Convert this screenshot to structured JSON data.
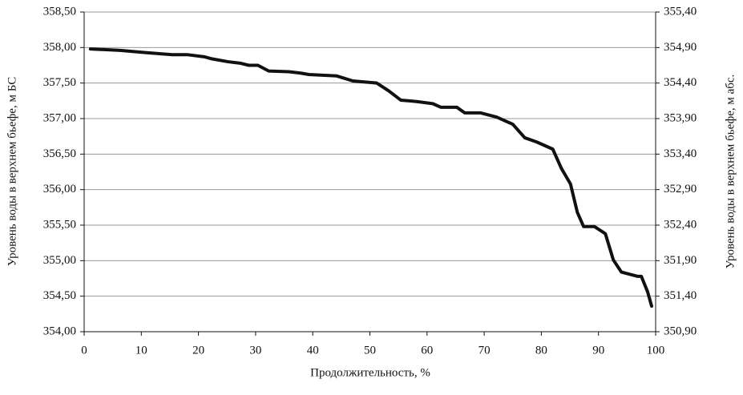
{
  "chart_data": {
    "type": "line",
    "xlabel": "Продолжительность, %",
    "ylabel": "Уровень воды в верхнем бьефе, м БС",
    "y2label": "Уровень воды в верхнем бьефе, м абс.",
    "xlim": [
      0,
      100
    ],
    "xticks": [
      0,
      10,
      20,
      30,
      40,
      50,
      60,
      70,
      80,
      90,
      100
    ],
    "ylim": [
      354.0,
      358.5
    ],
    "yticks": [
      {
        "value": 354.0,
        "label": "354,00"
      },
      {
        "value": 354.5,
        "label": "354,50"
      },
      {
        "value": 355.0,
        "label": "355,00"
      },
      {
        "value": 355.5,
        "label": "355,50"
      },
      {
        "value": 356.0,
        "label": "356,00"
      },
      {
        "value": 356.5,
        "label": "356,50"
      },
      {
        "value": 357.0,
        "label": "357,00"
      },
      {
        "value": 357.5,
        "label": "357,50"
      },
      {
        "value": 358.0,
        "label": "358,00"
      },
      {
        "value": 358.5,
        "label": "358,50"
      }
    ],
    "y2lim": [
      350.9,
      355.4
    ],
    "y2ticks": [
      {
        "value": 350.9,
        "label": "350,90"
      },
      {
        "value": 351.4,
        "label": "351,40"
      },
      {
        "value": 351.9,
        "label": "351,90"
      },
      {
        "value": 352.4,
        "label": "352,40"
      },
      {
        "value": 352.9,
        "label": "352,90"
      },
      {
        "value": 353.4,
        "label": "353,40"
      },
      {
        "value": 353.9,
        "label": "353,90"
      },
      {
        "value": 354.4,
        "label": "354,40"
      },
      {
        "value": 354.9,
        "label": "354,90"
      },
      {
        "value": 355.4,
        "label": "355,40"
      }
    ],
    "grid": true,
    "series": [
      {
        "color": "#111111",
        "x": [
          1.1,
          6.3,
          10.5,
          15.4,
          18,
          21,
          22.4,
          25.2,
          27.3,
          28.8,
          30.4,
          32.3,
          35.8,
          37.9,
          39.3,
          44.2,
          47,
          51.2,
          53.3,
          55.4,
          58.2,
          61,
          62.4,
          65.2,
          66.6,
          69.4,
          72.2,
          75,
          77.1,
          79.2,
          82,
          83.5,
          85.1,
          86.3,
          87.4,
          89.3,
          91.2,
          92.6,
          94,
          96.8,
          97.5,
          98.6,
          99.3
        ],
        "values": [
          357.98,
          357.96,
          357.93,
          357.9,
          357.9,
          357.87,
          357.84,
          357.8,
          357.78,
          357.75,
          357.75,
          357.67,
          357.66,
          357.64,
          357.62,
          357.6,
          357.53,
          357.5,
          357.39,
          357.26,
          357.24,
          357.21,
          357.16,
          357.16,
          357.08,
          357.08,
          357.02,
          356.92,
          356.73,
          356.67,
          356.57,
          356.3,
          356.08,
          355.68,
          355.48,
          355.48,
          355.38,
          355.01,
          354.84,
          354.78,
          354.78,
          354.56,
          354.36
        ]
      }
    ]
  }
}
